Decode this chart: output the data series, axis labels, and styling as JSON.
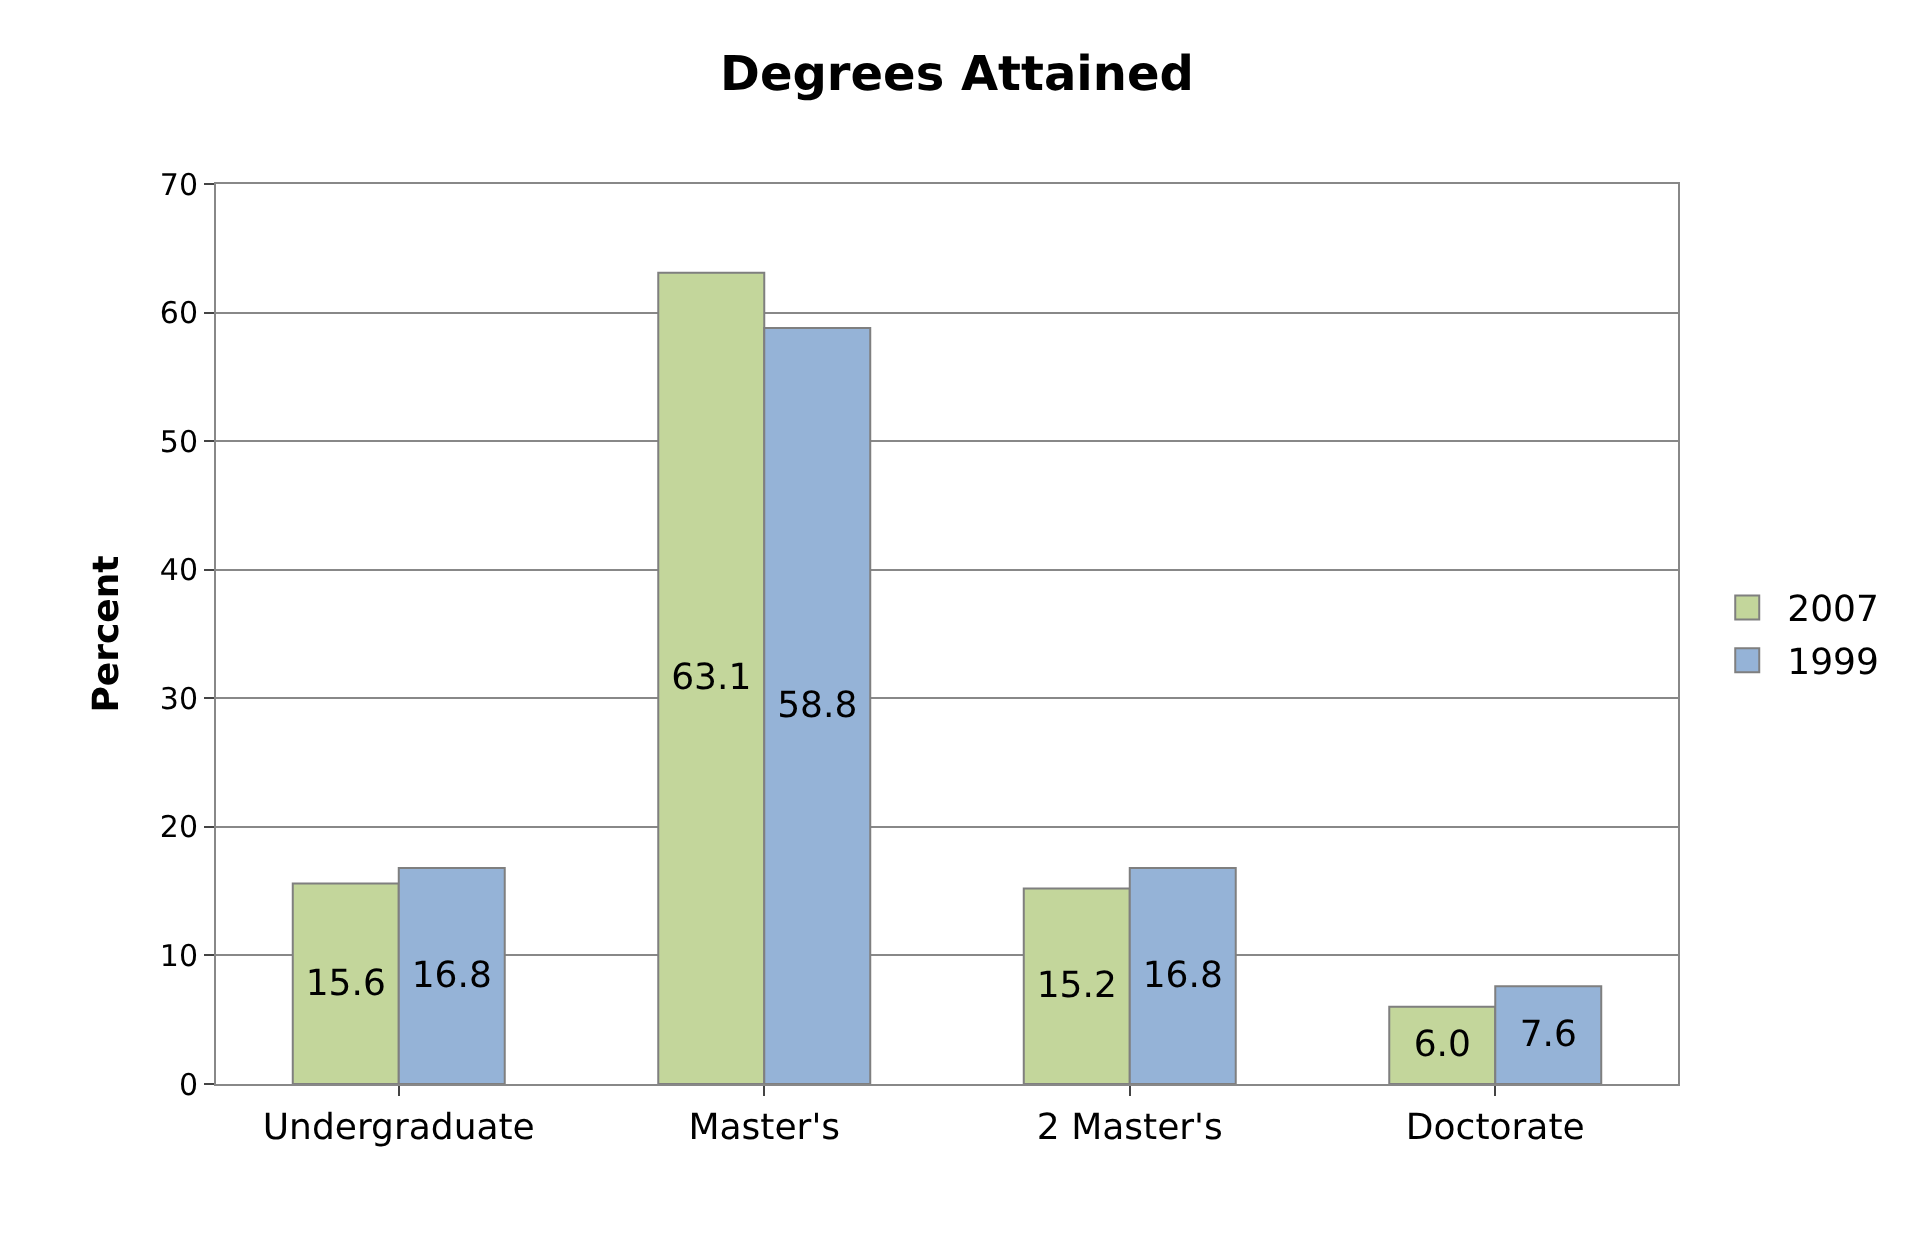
{
  "chart_data": {
    "type": "bar",
    "title": "Degrees Attained",
    "ylabel": "Percent",
    "categories": [
      "Undergraduate",
      "Master's",
      "2 Master's",
      "Doctorate"
    ],
    "series": [
      {
        "name": "2007",
        "color": "#c3d69b",
        "values": [
          15.6,
          63.1,
          15.2,
          6.0
        ],
        "value_labels": [
          "15.6",
          "63.1",
          "15.2",
          "6.0"
        ]
      },
      {
        "name": "1999",
        "color": "#95b3d7",
        "values": [
          16.8,
          58.8,
          16.8,
          7.6
        ],
        "value_labels": [
          "16.8",
          "58.8",
          "16.8",
          "7.6"
        ]
      }
    ],
    "ylim": [
      0,
      70
    ],
    "yticks": [
      0,
      10,
      20,
      30,
      40,
      50,
      60,
      70
    ],
    "grid": "y",
    "legend": "right"
  }
}
